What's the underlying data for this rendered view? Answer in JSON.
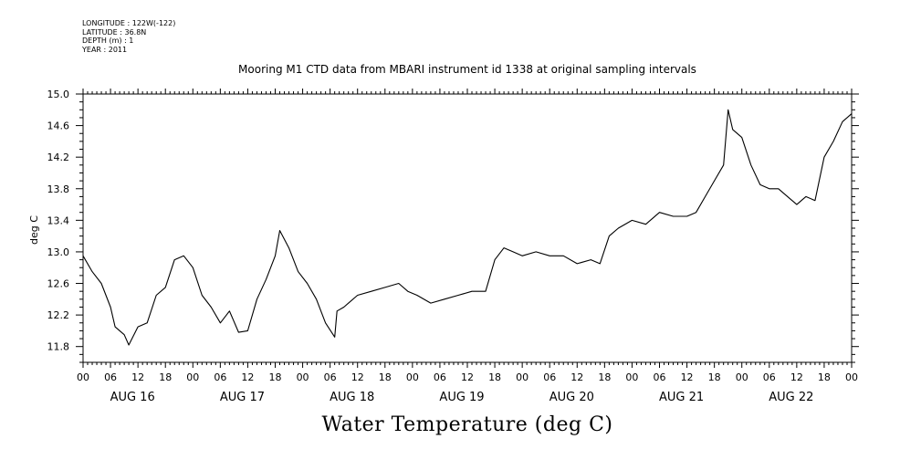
{
  "meta": {
    "longitude": "LONGITUDE : 122W(-122)",
    "latitude": "LATITUDE : 36.8N",
    "depth": "DEPTH (m) : 1",
    "year": "YEAR : 2011"
  },
  "chart_data": {
    "type": "line",
    "title": "Mooring M1 CTD data from MBARI instrument id 1338 at original sampling intervals",
    "xlabel": "Water Temperature (deg C)",
    "ylabel": "deg C",
    "ylim": [
      11.6,
      15.0
    ],
    "xlim": [
      "2011-08-16 00:00",
      "2011-08-23 00:00"
    ],
    "yticks": [
      "15.0",
      "14.6",
      "14.2",
      "13.8",
      "13.4",
      "13.0",
      "12.6",
      "12.2",
      "11.8"
    ],
    "hour_ticks": [
      "00",
      "06",
      "12",
      "18",
      "00",
      "06",
      "12",
      "18",
      "00",
      "06",
      "12",
      "18",
      "00",
      "06",
      "12",
      "18",
      "00",
      "06",
      "12",
      "18",
      "00",
      "06",
      "12",
      "18",
      "00",
      "06",
      "12",
      "18",
      "00"
    ],
    "day_labels": [
      "AUG 16",
      "AUG 17",
      "AUG 18",
      "AUG 19",
      "AUG 20",
      "AUG 21",
      "AUG 22"
    ],
    "grid": false,
    "series": [
      {
        "x": [
          "2011-08-16 00:00",
          "2011-08-16 02:00",
          "2011-08-16 04:00",
          "2011-08-16 06:00",
          "2011-08-16 07:00",
          "2011-08-16 09:00",
          "2011-08-16 10:00",
          "2011-08-16 12:00",
          "2011-08-16 14:00",
          "2011-08-16 16:00",
          "2011-08-16 18:00",
          "2011-08-16 20:00",
          "2011-08-16 22:00",
          "2011-08-17 00:00",
          "2011-08-17 02:00",
          "2011-08-17 04:00",
          "2011-08-17 06:00",
          "2011-08-17 08:00",
          "2011-08-17 10:00",
          "2011-08-17 12:00",
          "2011-08-17 14:00",
          "2011-08-17 16:00",
          "2011-08-17 18:00",
          "2011-08-17 19:00",
          "2011-08-17 21:00",
          "2011-08-17 23:00",
          "2011-08-18 01:00",
          "2011-08-18 03:00",
          "2011-08-18 05:00",
          "2011-08-18 07:00",
          "2011-08-18 07:30",
          "2011-08-18 09:00",
          "2011-08-18 12:00",
          "2011-08-18 15:00",
          "2011-08-18 18:00",
          "2011-08-18 21:00",
          "2011-08-18 23:00",
          "2011-08-19 01:00",
          "2011-08-19 04:00",
          "2011-08-19 07:00",
          "2011-08-19 10:00",
          "2011-08-19 13:00",
          "2011-08-19 16:00",
          "2011-08-19 18:00",
          "2011-08-19 20:00",
          "2011-08-19 22:00",
          "2011-08-20 00:00",
          "2011-08-20 03:00",
          "2011-08-20 06:00",
          "2011-08-20 09:00",
          "2011-08-20 12:00",
          "2011-08-20 15:00",
          "2011-08-20 17:00",
          "2011-08-20 19:00",
          "2011-08-20 21:00",
          "2011-08-21 00:00",
          "2011-08-21 03:00",
          "2011-08-21 06:00",
          "2011-08-21 09:00",
          "2011-08-21 12:00",
          "2011-08-21 14:00",
          "2011-08-21 16:00",
          "2011-08-21 18:00",
          "2011-08-21 20:00",
          "2011-08-21 21:00",
          "2011-08-21 22:00",
          "2011-08-22 00:00",
          "2011-08-22 02:00",
          "2011-08-22 04:00",
          "2011-08-22 06:00",
          "2011-08-22 08:00",
          "2011-08-22 10:00",
          "2011-08-22 12:00",
          "2011-08-22 14:00",
          "2011-08-22 16:00",
          "2011-08-22 18:00",
          "2011-08-22 20:00",
          "2011-08-22 22:00",
          "2011-08-23 00:00"
        ],
        "values": [
          12.95,
          12.75,
          12.6,
          12.3,
          12.05,
          11.95,
          11.82,
          12.05,
          12.1,
          12.45,
          12.55,
          12.9,
          12.95,
          12.8,
          12.45,
          12.3,
          12.1,
          12.25,
          11.98,
          12.0,
          12.4,
          12.65,
          12.95,
          13.27,
          13.05,
          12.75,
          12.6,
          12.4,
          12.1,
          11.92,
          12.25,
          12.3,
          12.45,
          12.5,
          12.55,
          12.6,
          12.5,
          12.45,
          12.35,
          12.4,
          12.45,
          12.5,
          12.5,
          12.9,
          13.05,
          13.0,
          12.95,
          13.0,
          12.95,
          12.95,
          12.85,
          12.9,
          12.85,
          13.2,
          13.3,
          13.4,
          13.35,
          13.5,
          13.45,
          13.45,
          13.5,
          13.7,
          13.9,
          14.1,
          14.8,
          14.55,
          14.45,
          14.1,
          13.85,
          13.8,
          13.8,
          13.7,
          13.6,
          13.7,
          13.65,
          14.2,
          14.4,
          14.65,
          14.75
        ]
      }
    ]
  }
}
